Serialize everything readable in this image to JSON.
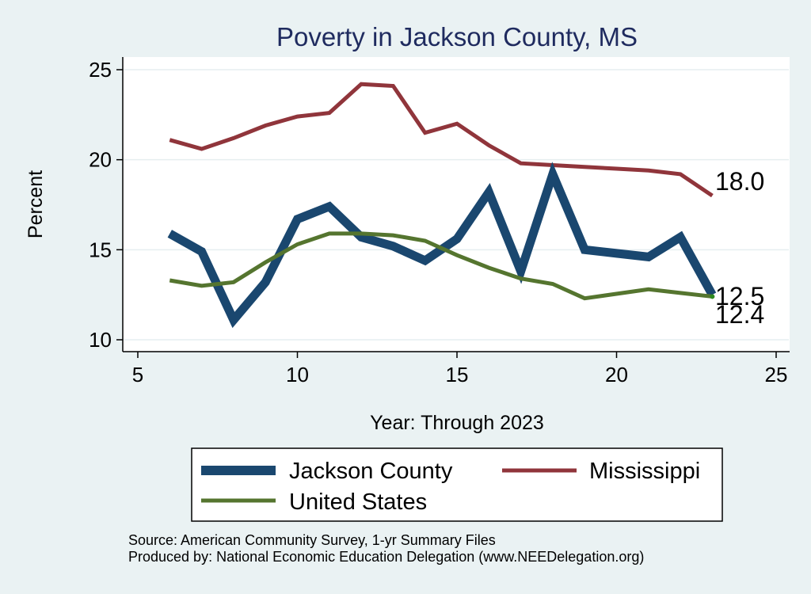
{
  "chart_data": {
    "type": "line",
    "title": "Poverty in Jackson County, MS",
    "xlabel": "Year: Through 2023",
    "ylabel": "Percent",
    "xlim": [
      5,
      25
    ],
    "ylim": [
      10,
      25
    ],
    "xticks": [
      5,
      10,
      15,
      20,
      25
    ],
    "yticks": [
      10,
      15,
      20,
      25
    ],
    "grid": true,
    "legend_position": "bottom",
    "series": [
      {
        "name": "Jackson County",
        "color": "#1a476f",
        "width": "thick",
        "x": [
          6,
          7,
          8,
          9,
          10,
          11,
          12,
          13,
          14,
          15,
          16,
          17,
          18,
          19,
          20,
          21,
          22,
          23
        ],
        "values": [
          15.9,
          14.9,
          11.1,
          13.2,
          16.7,
          17.4,
          15.7,
          15.2,
          14.4,
          15.6,
          18.2,
          13.8,
          19.2,
          15.0,
          14.8,
          14.6,
          15.7,
          12.5
        ]
      },
      {
        "name": "Mississippi",
        "color": "#90353b",
        "width": "medium",
        "x": [
          6,
          7,
          8,
          9,
          10,
          11,
          12,
          13,
          14,
          15,
          16,
          17,
          18,
          19,
          20,
          21,
          22,
          23
        ],
        "values": [
          21.1,
          20.6,
          21.2,
          21.9,
          22.4,
          22.6,
          24.2,
          24.1,
          21.5,
          22.0,
          20.8,
          19.8,
          19.7,
          19.6,
          19.5,
          19.4,
          19.2,
          18.0
        ]
      },
      {
        "name": "United States",
        "color": "#55752f",
        "width": "medium",
        "x": [
          6,
          7,
          8,
          9,
          10,
          11,
          12,
          13,
          14,
          15,
          16,
          17,
          18,
          19,
          21,
          22,
          23
        ],
        "values": [
          13.3,
          13.0,
          13.2,
          14.3,
          15.3,
          15.9,
          15.9,
          15.8,
          15.5,
          14.7,
          14.0,
          13.4,
          13.1,
          12.3,
          12.8,
          12.6,
          12.4
        ]
      }
    ],
    "end_labels": [
      "18.0",
      "12.5",
      "12.4"
    ],
    "notes": [
      "Source: American Community Survey, 1-yr Summary Files",
      "Produced by: National Economic Education Delegation (www.NEEDelegation.org)"
    ]
  }
}
